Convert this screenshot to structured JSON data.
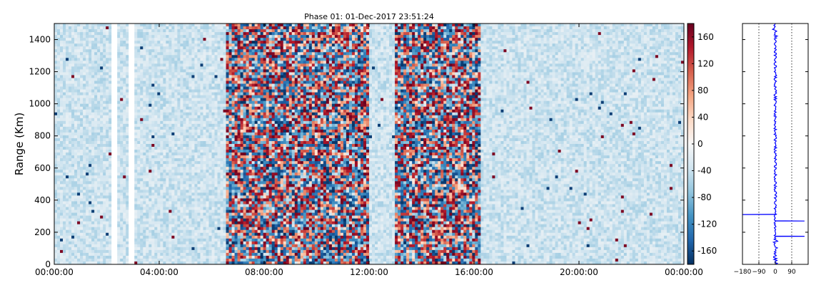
{
  "chart_data": [
    {
      "type": "heatmap",
      "title": "Phase 01: 01-Dec-2017 23:51:24",
      "xlabel": "",
      "ylabel": "Range (Km)",
      "x_tick_labels": [
        "00:00:00",
        "04:00:00",
        "08:00:00",
        "12:00:00",
        "16:00:00",
        "20:00:00",
        "00:00:00"
      ],
      "x_range_hours": [
        0,
        24
      ],
      "y_ticks": [
        0,
        200,
        400,
        600,
        800,
        1000,
        1200,
        1400
      ],
      "ylim": [
        0,
        1500
      ],
      "colormap": "RdBu_r",
      "colorbar": {
        "ticks": [
          -160,
          -120,
          -80,
          -40,
          0,
          40,
          80,
          120,
          160
        ],
        "range": [
          -180,
          180
        ]
      },
      "grid": false,
      "activity_bands_hours": [
        {
          "start": 6.5,
          "end": 10.5,
          "level": "strong"
        },
        {
          "start": 10.5,
          "end": 12.0,
          "level": "strong"
        },
        {
          "start": 13.0,
          "end": 16.3,
          "level": "strong"
        }
      ],
      "gap_columns_hours": [
        2.3,
        2.95
      ]
    },
    {
      "type": "line",
      "title": "",
      "xlabel": "",
      "ylabel": "",
      "x_ticks": [
        -180,
        -90,
        0,
        90
      ],
      "xlim": [
        -180,
        180
      ],
      "ylim": [
        0,
        1500
      ],
      "grid_x": [
        -90,
        90
      ],
      "series_color": "#0000ff",
      "outliers": [
        {
          "y": 310,
          "x": -180
        },
        {
          "y": 270,
          "x": 160
        },
        {
          "y": 175,
          "x": 160
        }
      ]
    }
  ]
}
